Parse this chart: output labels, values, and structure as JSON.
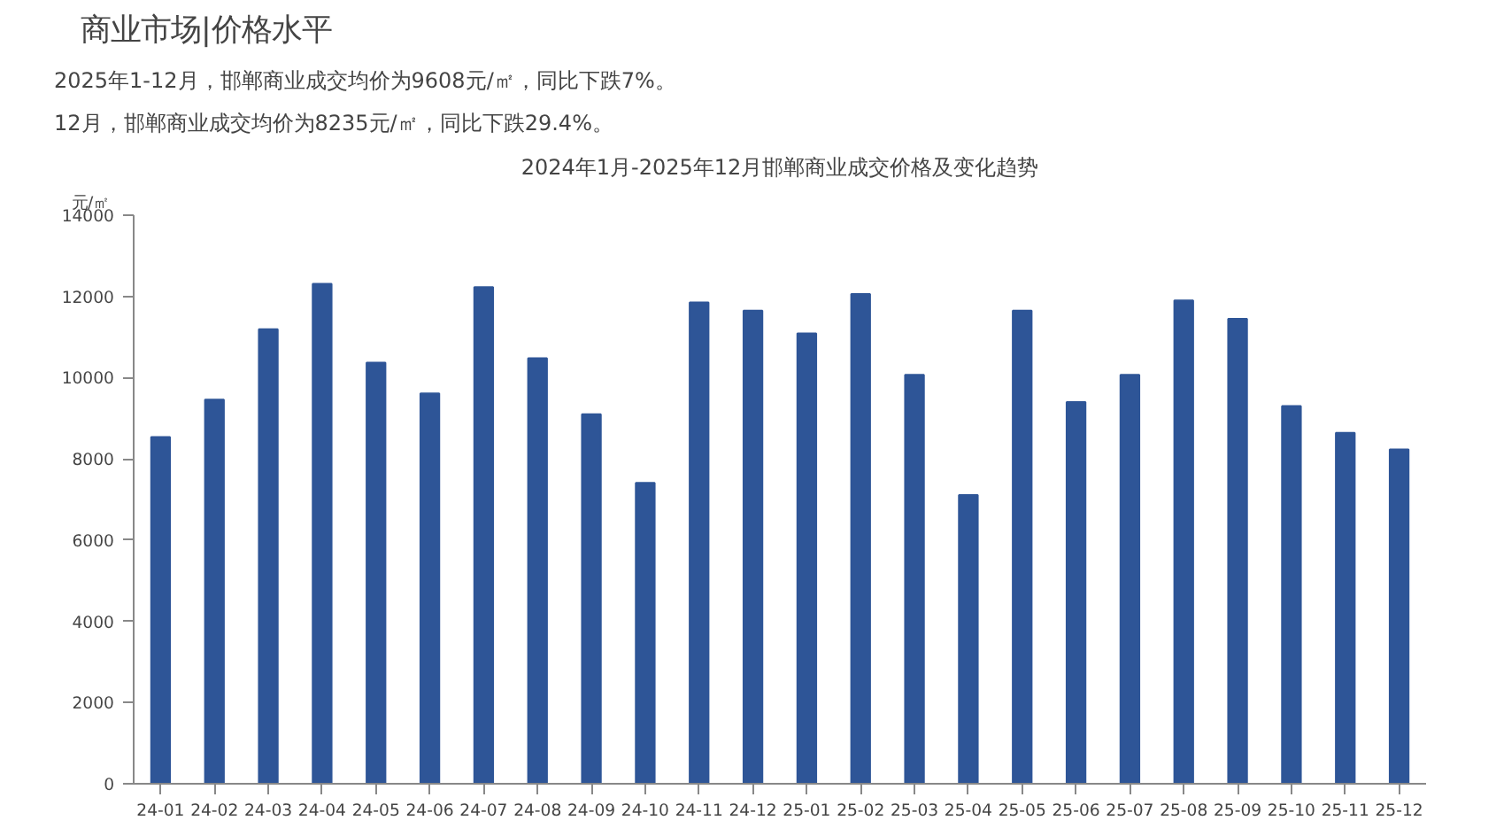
{
  "chart_data": {
    "type": "bar",
    "title": "商业市场|价格水平",
    "annotations": [
      "2025年1-12月，邯郸商业成交均价为9608元/㎡，同比下跌7%。",
      "12月，邯郸商业成交均价为8235元/㎡，同比下跌29.4%。"
    ],
    "subtitle": "2024年1月-2025年12月邯郸商业成交价格及变化趋势",
    "ylabel": "元/㎡",
    "categories": [
      "24-01",
      "24-02",
      "24-03",
      "24-04",
      "24-05",
      "24-06",
      "24-07",
      "24-08",
      "24-09",
      "24-10",
      "24-11",
      "24-12",
      "25-01",
      "25-02",
      "25-03",
      "25-04",
      "25-05",
      "25-06",
      "25-07",
      "25-08",
      "25-09",
      "25-10",
      "25-11",
      "25-12"
    ],
    "values": [
      8540,
      9460,
      11190,
      12310,
      10370,
      9610,
      12230,
      10480,
      9100,
      7410,
      11850,
      11650,
      11090,
      12060,
      10070,
      7110,
      11650,
      9400,
      10070,
      11900,
      11450,
      9300,
      8640,
      8230
    ],
    "color": "#2e5597",
    "ylim": [
      0,
      14000
    ],
    "yticks": [
      0,
      2000,
      4000,
      6000,
      8000,
      10000,
      12000,
      14000
    ],
    "grid": false
  }
}
